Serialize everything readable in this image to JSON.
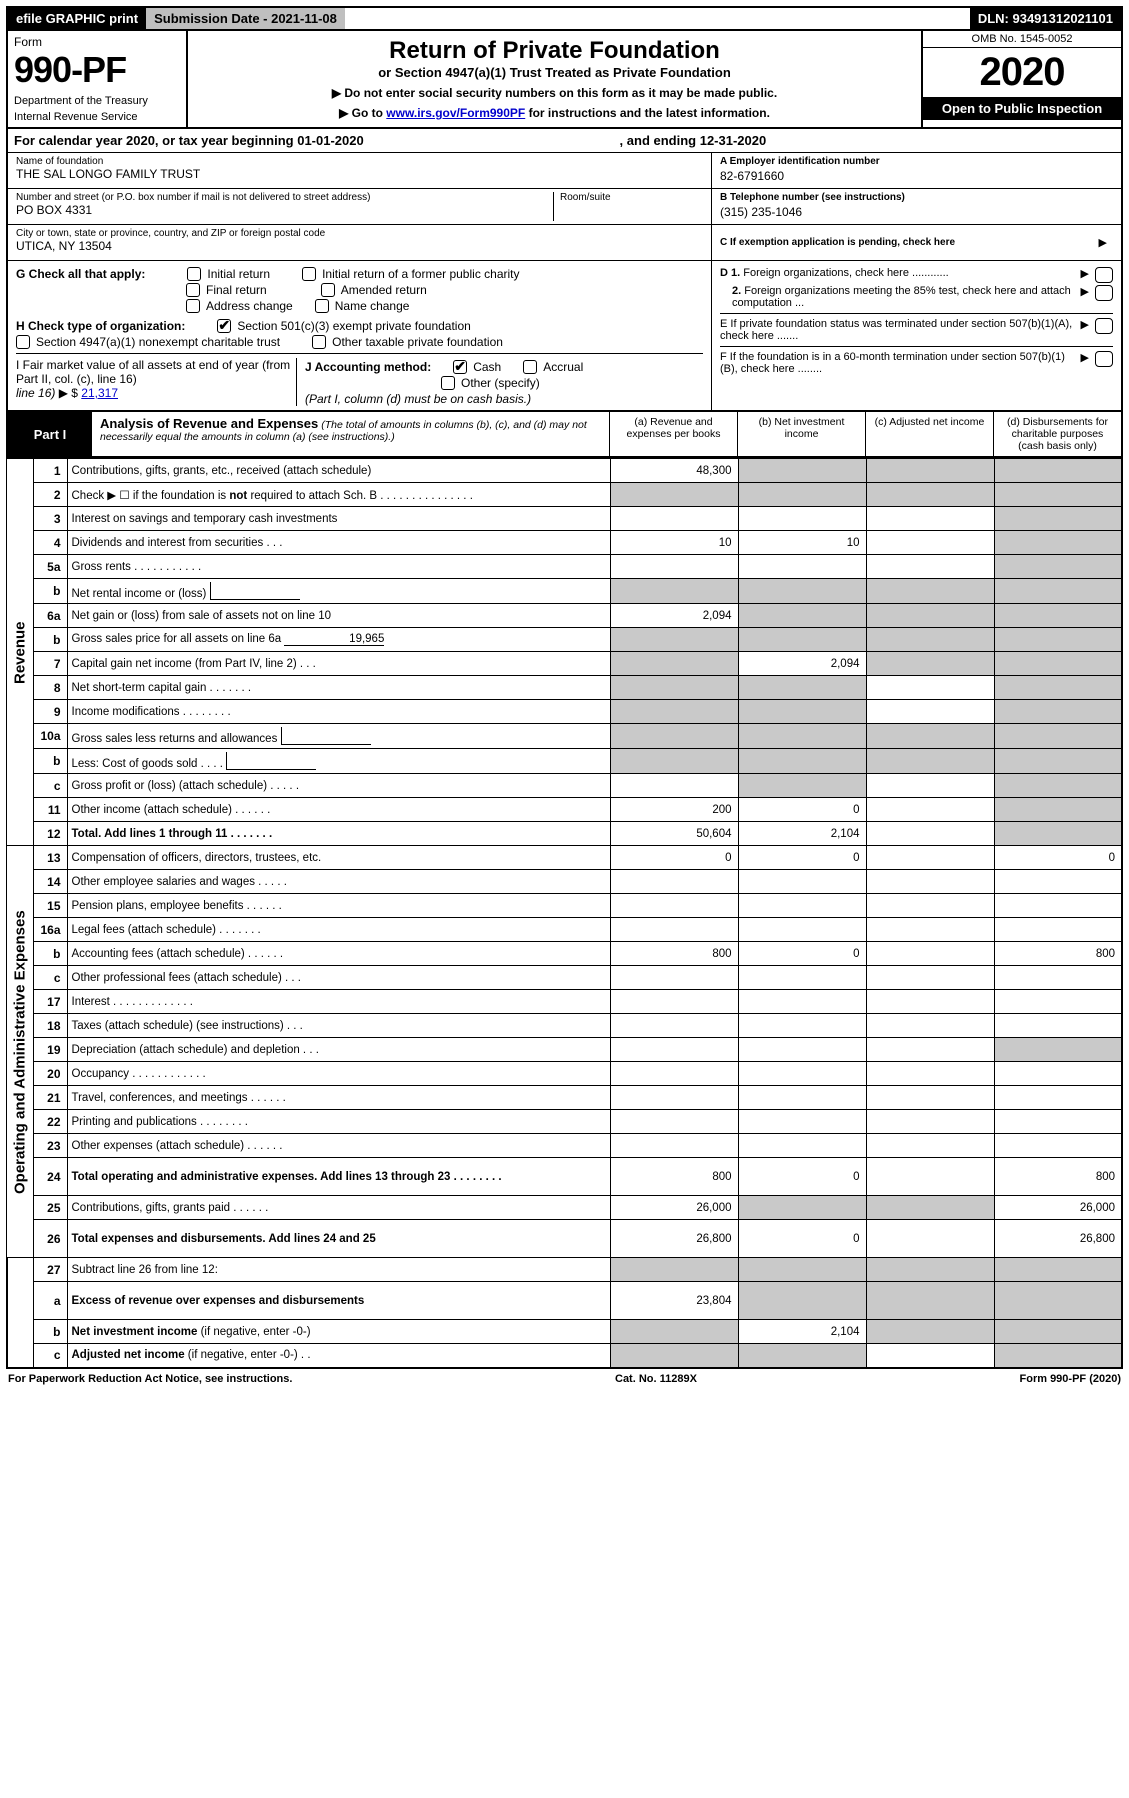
{
  "colors": {
    "black": "#000000",
    "white": "#ffffff",
    "gray_topbar": "#bfbfbf",
    "gray_shade": "#c9c9c9",
    "link": "#0000cc"
  },
  "topbar": {
    "efile": "efile GRAPHIC print",
    "subdate": "Submission Date - 2021-11-08",
    "dln": "DLN: 93491312021101"
  },
  "hdr": {
    "form_label": "Form",
    "form_num": "990-PF",
    "dept1": "Department of the Treasury",
    "dept2": "Internal Revenue Service",
    "title": "Return of Private Foundation",
    "subtitle": "or Section 4947(a)(1) Trust Treated as Private Foundation",
    "note1": "▶ Do not enter social security numbers on this form as it may be made public.",
    "note2_pre": "▶ Go to ",
    "note2_link": "www.irs.gov/Form990PF",
    "note2_post": " for instructions and the latest information.",
    "omb": "OMB No. 1545-0052",
    "year": "2020",
    "otp": "Open to Public Inspection"
  },
  "calyear": {
    "left": "For calendar year 2020, or tax year beginning 01-01-2020",
    "right": ", and ending 12-31-2020"
  },
  "entity": {
    "name_lbl": "Name of foundation",
    "name_val": "THE SAL LONGO FAMILY TRUST",
    "addr_lbl": "Number and street (or P.O. box number if mail is not delivered to street address)",
    "addr_val": "PO BOX 4331",
    "room_lbl": "Room/suite",
    "room_val": "",
    "city_lbl": "City or town, state or province, country, and ZIP or foreign postal code",
    "city_val": "UTICA, NY  13504",
    "a_lbl": "A Employer identification number",
    "a_val": "82-6791660",
    "b_lbl": "B Telephone number (see instructions)",
    "b_val": "(315) 235-1046",
    "c_lbl": "C If exemption application is pending, check here"
  },
  "g": {
    "label": "G Check all that apply:",
    "opts": [
      "Initial return",
      "Initial return of a former public charity",
      "Final return",
      "Amended return",
      "Address change",
      "Name change"
    ]
  },
  "h": {
    "label": "H Check type of organization:",
    "opt1": "Section 501(c)(3) exempt private foundation",
    "opt2": "Section 4947(a)(1) nonexempt charitable trust",
    "opt3": "Other taxable private foundation"
  },
  "i": {
    "label1": "I Fair market value of all assets at end of year (from Part II, col. (c), line 16)",
    "arrow": "▶ $",
    "val": "21,317"
  },
  "j": {
    "label": "J Accounting method:",
    "cash": "Cash",
    "accrual": "Accrual",
    "other": "Other (specify)",
    "note": "(Part I, column (d) must be on cash basis.)"
  },
  "right_box": {
    "d1": "D 1. Foreign organizations, check here ............",
    "d2": "2. Foreign organizations meeting the 85% test, check here and attach computation ...",
    "e": "E  If private foundation status was terminated under section 507(b)(1)(A), check here .......",
    "f": "F  If the foundation is in a 60-month termination under section 507(b)(1)(B), check here ........"
  },
  "part1": {
    "part_lbl": "Part I",
    "title": "Analysis of Revenue and Expenses",
    "sub": "(The total of amounts in columns (b), (c), and (d) may not necessarily equal the amounts in column (a) (see instructions).)",
    "col_a": "(a)   Revenue and expenses per books",
    "col_b": "(b)   Net investment income",
    "col_c": "(c)   Adjusted net income",
    "col_d": "(d)   Disbursements for charitable purposes (cash basis only)"
  },
  "side": {
    "revenue": "Revenue",
    "opexp": "Operating and Administrative Expenses"
  },
  "rows": [
    {
      "n": "1",
      "d": "Contributions, gifts, grants, etc., received (attach schedule)",
      "a": "48,300",
      "b_shade": true,
      "c_shade": true,
      "d_shade": true
    },
    {
      "n": "2",
      "d": "Check ▶ ☐ if the foundation is <b>not</b> required to attach Sch. B   .   .   .   .   .   .   .   .   .   .   .   .   .   .   .",
      "a_shade": true,
      "b_shade": true,
      "c_shade": true,
      "d_shade": true
    },
    {
      "n": "3",
      "d": "Interest on savings and temporary cash investments",
      "a": "",
      "b": "",
      "c": "",
      "d_shade": true
    },
    {
      "n": "4",
      "d": "Dividends and interest from securities   .   .   .",
      "a": "10",
      "b": "10",
      "c": "",
      "d_shade": true
    },
    {
      "n": "5a",
      "d": "Gross rents   .   .   .   .   .   .   .   .   .   .   .",
      "a": "",
      "b": "",
      "c": "",
      "d_shade": true
    },
    {
      "n": "b",
      "d": "Net rental income or (loss)",
      "inlinebox": true,
      "a_shade": true,
      "b_shade": true,
      "c_shade": true,
      "d_shade": true
    },
    {
      "n": "6a",
      "d": "Net gain or (loss) from sale of assets not on line 10",
      "a": "2,094",
      "b_shade": true,
      "c_shade": true,
      "d_shade": true
    },
    {
      "n": "b",
      "d": "Gross sales price for all assets on line 6a",
      "inlineval": "19,965",
      "a_shade": true,
      "b_shade": true,
      "c_shade": true,
      "d_shade": true
    },
    {
      "n": "7",
      "d": "Capital gain net income (from Part IV, line 2)   .   .   .",
      "a_shade": true,
      "b": "2,094",
      "c_shade": true,
      "d_shade": true
    },
    {
      "n": "8",
      "d": "Net short-term capital gain   .   .   .   .   .   .   .",
      "a_shade": true,
      "b_shade": true,
      "c": "",
      "d_shade": true
    },
    {
      "n": "9",
      "d": "Income modifications   .   .   .   .   .   .   .   .",
      "a_shade": true,
      "b_shade": true,
      "c": "",
      "d_shade": true
    },
    {
      "n": "10a",
      "d": "Gross sales less returns and allowances",
      "inlinebox": true,
      "a_shade": true,
      "b_shade": true,
      "c_shade": true,
      "d_shade": true
    },
    {
      "n": "b",
      "d": "Less: Cost of goods sold   .   .   .   .",
      "inlinebox": true,
      "a_shade": true,
      "b_shade": true,
      "c_shade": true,
      "d_shade": true
    },
    {
      "n": "c",
      "d": "Gross profit or (loss) (attach schedule)   .   .   .   .   .",
      "a": "",
      "b_shade": true,
      "c": "",
      "d_shade": true
    },
    {
      "n": "11",
      "d": "Other income (attach schedule)   .   .   .   .   .   .",
      "a": "200",
      "b": "0",
      "c": "",
      "d_shade": true
    },
    {
      "n": "12",
      "d": "<b>Total.</b> Add lines 1 through 11   .   .   .   .   .   .   .",
      "a": "50,604",
      "b": "2,104",
      "c": "",
      "d_shade": true,
      "bold": true
    }
  ],
  "exp_rows": [
    {
      "n": "13",
      "d": "Compensation of officers, directors, trustees, etc.",
      "a": "0",
      "b": "0",
      "c": "",
      "dd": "0"
    },
    {
      "n": "14",
      "d": "Other employee salaries and wages   .   .   .   .   .",
      "a": "",
      "b": "",
      "c": "",
      "dd": ""
    },
    {
      "n": "15",
      "d": "Pension plans, employee benefits   .   .   .   .   .   .",
      "a": "",
      "b": "",
      "c": "",
      "dd": ""
    },
    {
      "n": "16a",
      "d": "Legal fees (attach schedule)   .   .   .   .   .   .   .",
      "a": "",
      "b": "",
      "c": "",
      "dd": ""
    },
    {
      "n": "b",
      "d": "Accounting fees (attach schedule)   .   .   .   .   .   .",
      "a": "800",
      "b": "0",
      "c": "",
      "dd": "800"
    },
    {
      "n": "c",
      "d": "Other professional fees (attach schedule)   .   .   .",
      "a": "",
      "b": "",
      "c": "",
      "dd": ""
    },
    {
      "n": "17",
      "d": "Interest   .   .   .   .   .   .   .   .   .   .   .   .   .",
      "a": "",
      "b": "",
      "c": "",
      "dd": ""
    },
    {
      "n": "18",
      "d": "Taxes (attach schedule) (see instructions)   .   .   .",
      "a": "",
      "b": "",
      "c": "",
      "dd": ""
    },
    {
      "n": "19",
      "d": "Depreciation (attach schedule) and depletion   .   .   .",
      "a": "",
      "b": "",
      "c": "",
      "d_shade": true
    },
    {
      "n": "20",
      "d": "Occupancy   .   .   .   .   .   .   .   .   .   .   .   .",
      "a": "",
      "b": "",
      "c": "",
      "dd": ""
    },
    {
      "n": "21",
      "d": "Travel, conferences, and meetings   .   .   .   .   .   .",
      "a": "",
      "b": "",
      "c": "",
      "dd": ""
    },
    {
      "n": "22",
      "d": "Printing and publications   .   .   .   .   .   .   .   .",
      "a": "",
      "b": "",
      "c": "",
      "dd": ""
    },
    {
      "n": "23",
      "d": "Other expenses (attach schedule)   .   .   .   .   .   .",
      "a": "",
      "b": "",
      "c": "",
      "dd": ""
    },
    {
      "n": "24",
      "d": "<b>Total operating and administrative expenses.</b> Add lines 13 through 23   .   .   .   .   .   .   .   .",
      "a": "800",
      "b": "0",
      "c": "",
      "dd": "800",
      "bold": true,
      "tall": true
    },
    {
      "n": "25",
      "d": "Contributions, gifts, grants paid   .   .   .   .   .   .",
      "a": "26,000",
      "b_shade": true,
      "c_shade": true,
      "dd": "26,000"
    },
    {
      "n": "26",
      "d": "<b>Total expenses and disbursements.</b> Add lines 24 and 25",
      "a": "26,800",
      "b": "0",
      "c": "",
      "dd": "26,800",
      "bold": true,
      "tall": true
    }
  ],
  "bottom_rows": [
    {
      "n": "27",
      "d": "Subtract line 26 from line 12:",
      "a_shade": true,
      "b_shade": true,
      "c_shade": true,
      "d_shade": true
    },
    {
      "n": "a",
      "d": "<b>Excess of revenue over expenses and disbursements</b>",
      "a": "23,804",
      "b_shade": true,
      "c_shade": true,
      "d_shade": true,
      "tall": true
    },
    {
      "n": "b",
      "d": "<b>Net investment income</b> (if negative, enter -0-)",
      "a_shade": true,
      "b": "2,104",
      "c_shade": true,
      "d_shade": true
    },
    {
      "n": "c",
      "d": "<b>Adjusted net income</b> (if negative, enter -0-)   .   .",
      "a_shade": true,
      "b_shade": true,
      "c": "",
      "d_shade": true
    }
  ],
  "footer": {
    "left": "For Paperwork Reduction Act Notice, see instructions.",
    "mid": "Cat. No. 11289X",
    "right": "Form 990-PF (2020)"
  }
}
